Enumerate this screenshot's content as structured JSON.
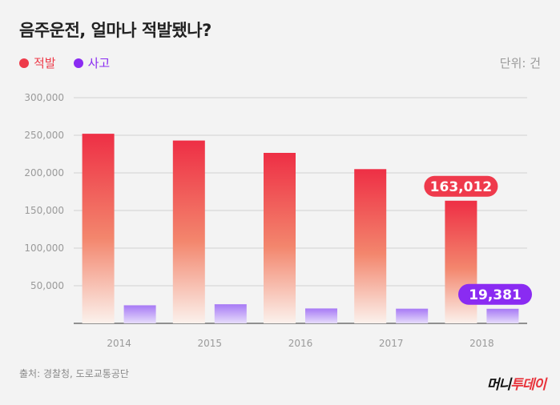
{
  "title": "음주운전, 얼마나 적발됐나?",
  "unit_label": "단위: 건",
  "source_label": "출처: 경찰청, 도로교통공단",
  "logo": {
    "part1": "머니",
    "part2": "투데이"
  },
  "colors": {
    "enforcement_top": "#ee2f45",
    "enforcement_bottom": "#f7b58a",
    "accident_top": "#a779f5",
    "accident_bottom": "#d6c2fb",
    "enforcement_legend": "#ee3b4a",
    "accident_legend": "#8a2bf2",
    "callout_enforcement": "#ef3a4c",
    "callout_accident": "#8a2bf2"
  },
  "chart_data": {
    "type": "bar",
    "categories": [
      "2014",
      "2015",
      "2016",
      "2017",
      "2018"
    ],
    "series": [
      {
        "name": "적발",
        "values": [
          252000,
          243000,
          226600,
          205000,
          163012
        ]
      },
      {
        "name": "사고",
        "values": [
          24000,
          25400,
          19800,
          19500,
          19381
        ]
      }
    ],
    "yticks": [
      "50,000",
      "100,000",
      "150,000",
      "200,000",
      "250,000",
      "300,000"
    ],
    "ytick_values": [
      50000,
      100000,
      150000,
      200000,
      250000,
      300000
    ],
    "ylim": [
      0,
      300000
    ],
    "legend_position": "top-left",
    "grid": true,
    "callouts": [
      {
        "series": 0,
        "category": "2018",
        "text": "163,012"
      },
      {
        "series": 1,
        "category": "2018",
        "text": "19,381"
      }
    ]
  }
}
